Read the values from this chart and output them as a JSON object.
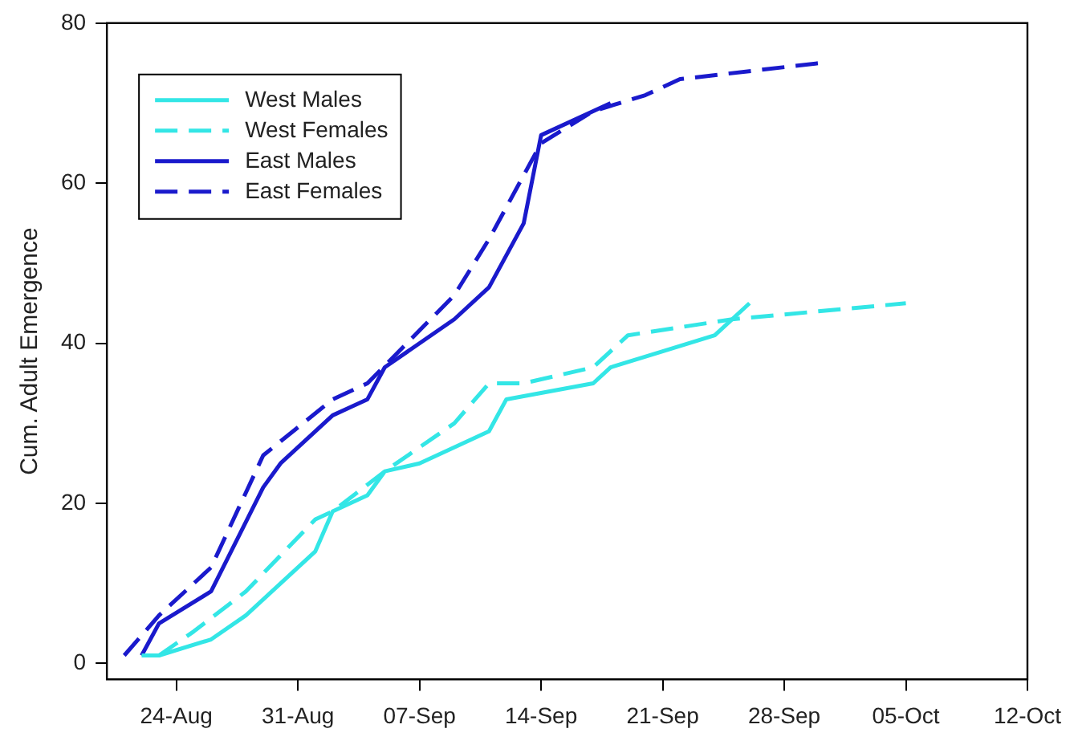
{
  "chart_data": {
    "type": "line",
    "ylabel": "Cum. Adult Emergence",
    "xlim": [
      "--08-20",
      "--10-12"
    ],
    "xticks": [
      {
        "value": "--08-24",
        "label": "24-Aug"
      },
      {
        "value": "--08-31",
        "label": "31-Aug"
      },
      {
        "value": "--09-07",
        "label": "07-Sep"
      },
      {
        "value": "--09-14",
        "label": "14-Sep"
      },
      {
        "value": "--09-21",
        "label": "21-Sep"
      },
      {
        "value": "--09-28",
        "label": "28-Sep"
      },
      {
        "value": "--10-05",
        "label": "05-Oct"
      },
      {
        "value": "--10-12",
        "label": "12-Oct"
      }
    ],
    "ylim": [
      -2,
      80
    ],
    "yticks": [
      0,
      20,
      40,
      60,
      80
    ],
    "grid": false,
    "legend": "top left",
    "marker": "none",
    "series": [
      {
        "name": "West Males",
        "color": "#33e6e6",
        "line_style": "solid",
        "x": [
          "--08-22",
          "--08-23",
          "--08-26",
          "--08-28",
          "--09-01",
          "--09-02",
          "--09-04",
          "--09-05",
          "--09-07",
          "--09-11",
          "--09-12",
          "--09-17",
          "--09-18",
          "--09-21",
          "--09-24",
          "--09-26"
        ],
        "values": [
          1,
          1,
          3,
          6,
          14,
          19,
          21,
          24,
          25,
          29,
          33,
          35,
          37,
          39,
          41,
          45
        ]
      },
      {
        "name": "West Females",
        "color": "#33e6e6",
        "line_style": "dashed",
        "x": [
          "--08-23",
          "--08-25",
          "--08-28",
          "--09-01",
          "--09-02",
          "--09-05",
          "--09-09",
          "--09-11",
          "--09-13",
          "--09-17",
          "--09-19",
          "--09-25",
          "--10-05"
        ],
        "values": [
          1,
          4,
          9,
          18,
          19,
          24,
          30,
          35,
          35,
          37,
          41,
          43,
          45
        ]
      },
      {
        "name": "East Males",
        "color": "#1a1acc",
        "line_style": "solid",
        "x": [
          "--08-22",
          "--08-23",
          "--08-26",
          "--08-29",
          "--08-30",
          "--09-02",
          "--09-04",
          "--09-05",
          "--09-09",
          "--09-11",
          "--09-13",
          "--09-14",
          "--09-18"
        ],
        "values": [
          1,
          5,
          9,
          22,
          25,
          31,
          33,
          37,
          43,
          47,
          55,
          66,
          70
        ]
      },
      {
        "name": "East Females",
        "color": "#1a1acc",
        "line_style": "dashed",
        "x": [
          "--08-21",
          "--08-23",
          "--08-26",
          "--08-29",
          "--09-02",
          "--09-04",
          "--09-09",
          "--09-11",
          "--09-14",
          "--09-17",
          "--09-20",
          "--09-22",
          "--09-30"
        ],
        "values": [
          1,
          6,
          12,
          26,
          33,
          35,
          46,
          53,
          65,
          69,
          71,
          73,
          75
        ]
      }
    ]
  }
}
